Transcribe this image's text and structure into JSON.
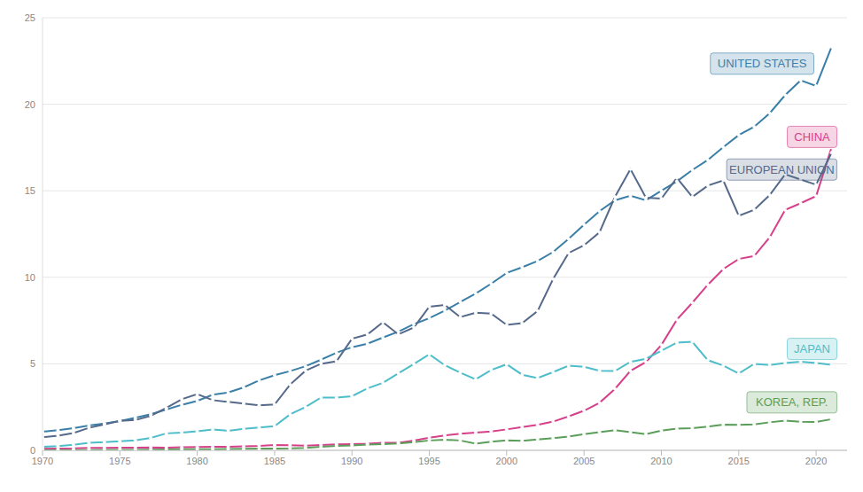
{
  "chart_data": {
    "type": "line",
    "x": [
      1970,
      1971,
      1972,
      1973,
      1974,
      1975,
      1976,
      1977,
      1978,
      1979,
      1980,
      1981,
      1982,
      1983,
      1984,
      1985,
      1986,
      1987,
      1988,
      1989,
      1990,
      1991,
      1992,
      1993,
      1994,
      1995,
      1996,
      1997,
      1998,
      1999,
      2000,
      2001,
      2002,
      2003,
      2004,
      2005,
      2006,
      2007,
      2008,
      2009,
      2010,
      2011,
      2012,
      2013,
      2014,
      2015,
      2016,
      2017,
      2018,
      2019,
      2020,
      2021
    ],
    "series": [
      {
        "name": "UNITED STATES",
        "color": "#3a7fa8",
        "values": [
          1.07,
          1.16,
          1.28,
          1.43,
          1.55,
          1.69,
          1.88,
          2.09,
          2.36,
          2.63,
          2.86,
          3.21,
          3.34,
          3.64,
          4.04,
          4.34,
          4.58,
          4.86,
          5.24,
          5.64,
          5.96,
          6.16,
          6.52,
          6.86,
          7.29,
          7.64,
          8.07,
          8.58,
          9.06,
          9.63,
          10.25,
          10.58,
          10.94,
          11.46,
          12.22,
          13.04,
          13.82,
          14.45,
          14.71,
          14.45,
          15.0,
          15.54,
          16.2,
          16.78,
          17.52,
          18.22,
          18.7,
          19.48,
          20.53,
          21.38,
          21.06,
          23.32
        ]
      },
      {
        "name": "CHINA",
        "color": "#d6408a",
        "values": [
          0.09,
          0.1,
          0.11,
          0.14,
          0.14,
          0.16,
          0.15,
          0.17,
          0.15,
          0.18,
          0.19,
          0.2,
          0.21,
          0.23,
          0.26,
          0.31,
          0.3,
          0.27,
          0.31,
          0.35,
          0.36,
          0.38,
          0.43,
          0.44,
          0.56,
          0.73,
          0.86,
          0.96,
          1.03,
          1.09,
          1.21,
          1.34,
          1.47,
          1.66,
          1.96,
          2.29,
          2.75,
          3.55,
          4.59,
          5.1,
          6.09,
          7.55,
          8.53,
          9.57,
          10.48,
          11.06,
          11.23,
          12.31,
          13.89,
          14.28,
          14.69,
          17.5
        ]
      },
      {
        "name": "EUROPEAN UNION",
        "color": "#55698a",
        "values": [
          0.75,
          0.85,
          1.0,
          1.3,
          1.5,
          1.7,
          1.75,
          2.0,
          2.45,
          2.95,
          3.25,
          2.9,
          2.8,
          2.7,
          2.6,
          2.65,
          3.8,
          4.6,
          5.0,
          5.15,
          6.45,
          6.7,
          7.4,
          6.7,
          7.1,
          8.3,
          8.4,
          7.7,
          7.95,
          7.9,
          7.25,
          7.35,
          8.05,
          9.9,
          11.4,
          11.85,
          12.6,
          14.65,
          16.25,
          14.6,
          14.55,
          15.75,
          14.65,
          15.3,
          15.6,
          13.55,
          13.9,
          14.75,
          15.95,
          15.65,
          15.35,
          17.2
        ]
      },
      {
        "name": "JAPAN",
        "color": "#4dbdc9",
        "values": [
          0.21,
          0.24,
          0.32,
          0.43,
          0.48,
          0.52,
          0.58,
          0.72,
          0.98,
          1.02,
          1.1,
          1.2,
          1.13,
          1.24,
          1.32,
          1.4,
          2.08,
          2.5,
          3.05,
          3.05,
          3.13,
          3.58,
          3.9,
          4.45,
          4.99,
          5.55,
          4.92,
          4.49,
          4.1,
          4.64,
          4.97,
          4.37,
          4.18,
          4.52,
          4.89,
          4.83,
          4.6,
          4.58,
          5.11,
          5.29,
          5.76,
          6.23,
          6.27,
          5.21,
          4.9,
          4.44,
          5.0,
          4.93,
          5.04,
          5.12,
          5.04,
          4.94
        ]
      },
      {
        "name": "KOREA, REP.",
        "color": "#5a9e5a",
        "values": [
          0.01,
          0.01,
          0.01,
          0.01,
          0.02,
          0.02,
          0.03,
          0.04,
          0.05,
          0.07,
          0.07,
          0.07,
          0.08,
          0.09,
          0.1,
          0.1,
          0.11,
          0.14,
          0.2,
          0.25,
          0.28,
          0.33,
          0.36,
          0.4,
          0.47,
          0.57,
          0.61,
          0.57,
          0.38,
          0.5,
          0.58,
          0.55,
          0.63,
          0.7,
          0.79,
          0.93,
          1.05,
          1.17,
          1.05,
          0.94,
          1.14,
          1.25,
          1.28,
          1.37,
          1.48,
          1.47,
          1.5,
          1.62,
          1.72,
          1.65,
          1.64,
          1.8
        ]
      }
    ],
    "xlim": [
      1970,
      2022
    ],
    "xticks": [
      1970,
      1975,
      1980,
      1985,
      1990,
      1995,
      2000,
      2005,
      2010,
      2015,
      2020
    ],
    "ylim": [
      0,
      25
    ],
    "yticks": [
      0,
      5,
      10,
      15,
      20,
      25
    ],
    "grid": true,
    "marker": "circle",
    "line_style": "solid"
  }
}
